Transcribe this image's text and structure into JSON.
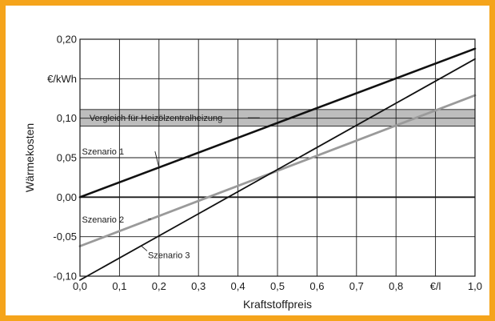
{
  "chart_data": {
    "type": "line",
    "title": "",
    "xlabel": "Kraftstoffpreis",
    "ylabel": "Wärmekosten",
    "xlim": [
      0.0,
      1.0
    ],
    "ylim": [
      -0.1,
      0.2
    ],
    "x_ticks": [
      0.0,
      0.1,
      0.2,
      0.3,
      0.4,
      0.5,
      0.6,
      0.7,
      0.8,
      0.9,
      1.0
    ],
    "x_tick_labels": [
      "0,0",
      "0,1",
      "0,2",
      "0,3",
      "0,4",
      "0,5",
      "0,6",
      "0,7",
      "0,8",
      "€/l",
      "1,0"
    ],
    "y_ticks": [
      -0.1,
      -0.05,
      0.0,
      0.05,
      0.1,
      0.15,
      0.2
    ],
    "y_tick_labels": [
      "-0,10",
      "-0,05",
      "0,00",
      "0,05",
      "0,10",
      "€/kWh",
      "0,20"
    ],
    "grid": true,
    "series": [
      {
        "name": "Szenario 1",
        "x": [
          0.0,
          1.0
        ],
        "y": [
          0.0,
          0.188
        ],
        "color": "#111111"
      },
      {
        "name": "Szenario 2",
        "x": [
          0.0,
          1.0
        ],
        "y": [
          -0.062,
          0.129
        ],
        "color": "#9a9a9a"
      },
      {
        "name": "Szenario 3",
        "x": [
          0.0,
          1.0
        ],
        "y": [
          -0.105,
          0.175
        ],
        "color": "#111111"
      }
    ],
    "band": {
      "label": "Vergleich für Heizölzentralheizung",
      "y_range": [
        0.09,
        0.111
      ],
      "color": "#bdbdbd"
    },
    "annotations": [
      {
        "text": "Szenario 1",
        "series": 0
      },
      {
        "text": "Szenario 2",
        "series": 1
      },
      {
        "text": "Szenario 3",
        "series": 2
      }
    ]
  }
}
